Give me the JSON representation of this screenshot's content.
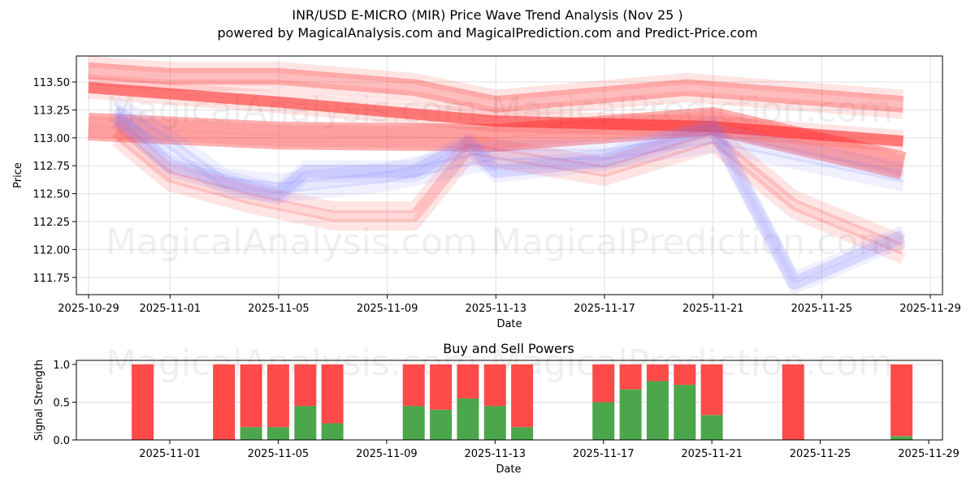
{
  "header": {
    "title": "INR/USD E-MICRO (MIR) Price Wave Trend Analysis (Nov 25 )",
    "subtitle": "powered by MagicalAnalysis.com and MagicalPrediction.com and Predict-Price.com"
  },
  "watermarks": [
    "MagicalAnalysis.com",
    "MagicalPrediction.com"
  ],
  "colors": {
    "sell": "#ff4a4a",
    "buy": "#4ca64c",
    "wave_red": "#ff2020",
    "wave_blue": "#8080ff",
    "grid": "#e0e0e0"
  },
  "chart_data": [
    {
      "type": "area",
      "title": "INR/USD E-MICRO (MIR) Price Wave Trend Analysis (Nov 25 )",
      "xlabel": "Date",
      "ylabel": "Price",
      "x_ticks": [
        "2025-10-29",
        "2025-11-01",
        "2025-11-05",
        "2025-11-09",
        "2025-11-13",
        "2025-11-17",
        "2025-11-21",
        "2025-11-25",
        "2025-11-29"
      ],
      "y_ticks": [
        "111.75",
        "112.00",
        "112.25",
        "112.50",
        "112.75",
        "113.00",
        "113.25",
        "113.50"
      ],
      "ylim": [
        111.59,
        113.73
      ],
      "grid": true,
      "description": "Overlapping semi-transparent red and blue wave bands showing price trend projections; central red band declines from ~113.45 to ~112.97",
      "series": [
        {
          "name": "main-trend-red",
          "color": "red",
          "x": [
            "2025-10-29",
            "2025-11-05",
            "2025-11-13",
            "2025-11-21",
            "2025-11-28"
          ],
          "values": [
            113.45,
            113.32,
            113.15,
            113.1,
            112.97
          ],
          "width": 0.1
        },
        {
          "name": "upper-band-red",
          "color": "red",
          "x": [
            "2025-10-29",
            "2025-11-01",
            "2025-11-05",
            "2025-11-10",
            "2025-11-13",
            "2025-11-20",
            "2025-11-28"
          ],
          "values": [
            113.6,
            113.55,
            113.55,
            113.45,
            113.3,
            113.45,
            113.3
          ],
          "width": 0.15
        },
        {
          "name": "mid-band-red",
          "color": "red",
          "x": [
            "2025-10-29",
            "2025-11-05",
            "2025-11-13",
            "2025-11-21",
            "2025-11-28"
          ],
          "values": [
            113.1,
            113.02,
            113.0,
            113.15,
            112.75
          ],
          "width": 0.25
        },
        {
          "name": "lower-band-red",
          "color": "red",
          "x": [
            "2025-10-30",
            "2025-11-01",
            "2025-11-04",
            "2025-11-07",
            "2025-11-10",
            "2025-11-12",
            "2025-11-17",
            "2025-11-21",
            "2025-11-24",
            "2025-11-28"
          ],
          "values": [
            113.05,
            112.65,
            112.45,
            112.3,
            112.3,
            112.9,
            112.7,
            113.0,
            112.4,
            112.0
          ],
          "width": 0.1
        },
        {
          "name": "wave-blue-1",
          "color": "blue",
          "x": [
            "2025-10-30",
            "2025-11-01",
            "2025-11-04",
            "2025-11-05",
            "2025-11-06",
            "2025-11-10",
            "2025-11-12",
            "2025-11-13",
            "2025-11-17",
            "2025-11-21",
            "2025-11-24",
            "2025-11-28"
          ],
          "values": [
            113.2,
            112.75,
            112.55,
            112.5,
            112.7,
            112.7,
            112.95,
            112.7,
            112.8,
            113.1,
            111.7,
            112.12
          ],
          "width": 0.12
        },
        {
          "name": "wave-blue-2",
          "color": "blue",
          "x": [
            "2025-10-30",
            "2025-11-01",
            "2025-11-03",
            "2025-11-05",
            "2025-11-09",
            "2025-11-13",
            "2025-11-17",
            "2025-11-21",
            "2025-11-28"
          ],
          "values": [
            113.25,
            112.95,
            112.6,
            112.55,
            112.65,
            112.85,
            112.85,
            113.0,
            112.65
          ],
          "width": 0.1
        }
      ]
    },
    {
      "type": "bar",
      "title": "Buy and Sell Powers",
      "xlabel": "Date",
      "ylabel": "Signal Strength",
      "x_ticks": [
        "2025-11-01",
        "2025-11-05",
        "2025-11-09",
        "2025-11-13",
        "2025-11-17",
        "2025-11-21",
        "2025-11-25",
        "2025-11-29"
      ],
      "y_ticks": [
        "0.0",
        "0.5",
        "1.0"
      ],
      "ylim": [
        0,
        1.05
      ],
      "grid": true,
      "categories": [
        "2025-10-31",
        "2025-11-03",
        "2025-11-04",
        "2025-11-05",
        "2025-11-06",
        "2025-11-07",
        "2025-11-10",
        "2025-11-11",
        "2025-11-12",
        "2025-11-13",
        "2025-11-14",
        "2025-11-17",
        "2025-11-18",
        "2025-11-19",
        "2025-11-20",
        "2025-11-21",
        "2025-11-24",
        "2025-11-28"
      ],
      "series": [
        {
          "name": "Buy",
          "color": "green",
          "values": [
            0,
            0,
            0.17,
            0.17,
            0.45,
            0.22,
            0.45,
            0.4,
            0.55,
            0.45,
            0.17,
            0.5,
            0.67,
            0.78,
            0.73,
            0.33,
            0,
            0.05
          ]
        },
        {
          "name": "Sell",
          "color": "red",
          "values": [
            1.0,
            1.0,
            0.83,
            0.83,
            0.55,
            0.78,
            0.55,
            0.6,
            0.45,
            0.55,
            0.83,
            0.5,
            0.33,
            0.22,
            0.27,
            0.67,
            1.0,
            0.95
          ]
        }
      ]
    }
  ]
}
